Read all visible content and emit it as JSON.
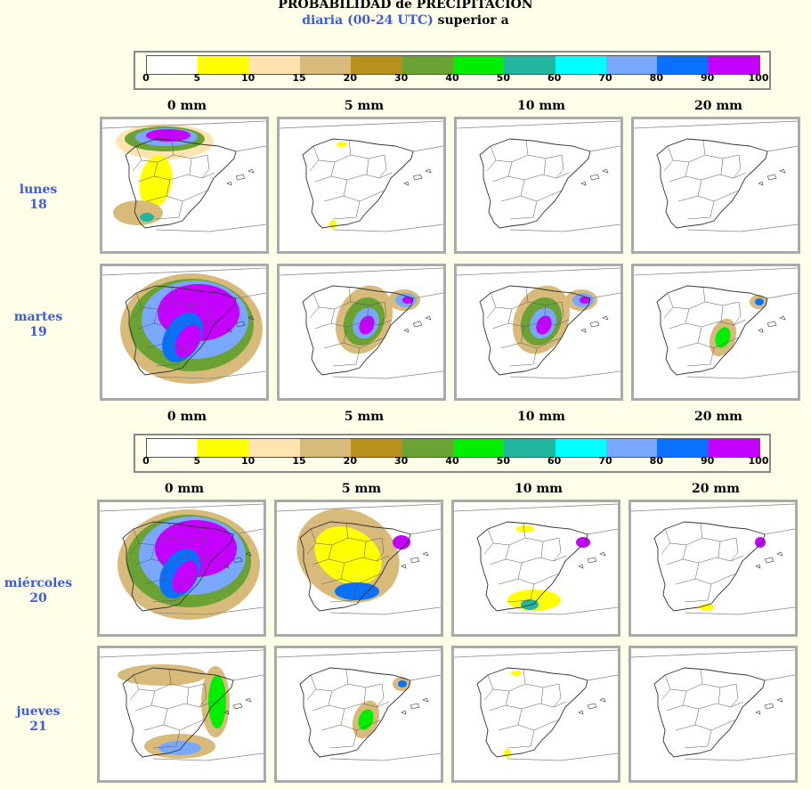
{
  "title": {
    "line1": "PROBABILIDAD de PRECIPITACION",
    "line2_blue": "diaria (00-24 UTC)",
    "line2_black": " superior a"
  },
  "scale": {
    "ticks": [
      "0",
      "5",
      "10",
      "15",
      "20",
      "30",
      "40",
      "50",
      "60",
      "70",
      "80",
      "90",
      "100"
    ],
    "colors": [
      "#ffffff",
      "#ffff00",
      "#ffe4b0",
      "#d8bb7a",
      "#b8901c",
      "#6aa333",
      "#00ee00",
      "#22b5a0",
      "#00ffff",
      "#7aa8ff",
      "#0a70ff",
      "#c400ff"
    ]
  },
  "thresholds_top": [
    "0 mm",
    "5 mm",
    "10 mm",
    "20 mm"
  ],
  "thresholds_mid": [
    "0 mm",
    "5 mm",
    "10 mm",
    "20 mm"
  ],
  "thresholds_bottom": [
    "0 mm",
    "5 mm",
    "10 mm",
    "20 mm"
  ],
  "days": [
    {
      "name": "lunes",
      "num": "18"
    },
    {
      "name": "martes",
      "num": "19"
    },
    {
      "name": "miércoles",
      "num": "20"
    },
    {
      "name": "jueves",
      "num": "21"
    }
  ],
  "maps": [
    [
      "widespread-north-west",
      "minimal",
      "none",
      "none"
    ],
    [
      "heavy-east",
      "moderate-east",
      "moderate-east",
      "light-east"
    ],
    [
      "heavy-east",
      "moderate-south-east",
      "light-south-east",
      "light-north-east"
    ],
    [
      "moderate-east-coast",
      "light-east",
      "minimal",
      "none"
    ]
  ]
}
